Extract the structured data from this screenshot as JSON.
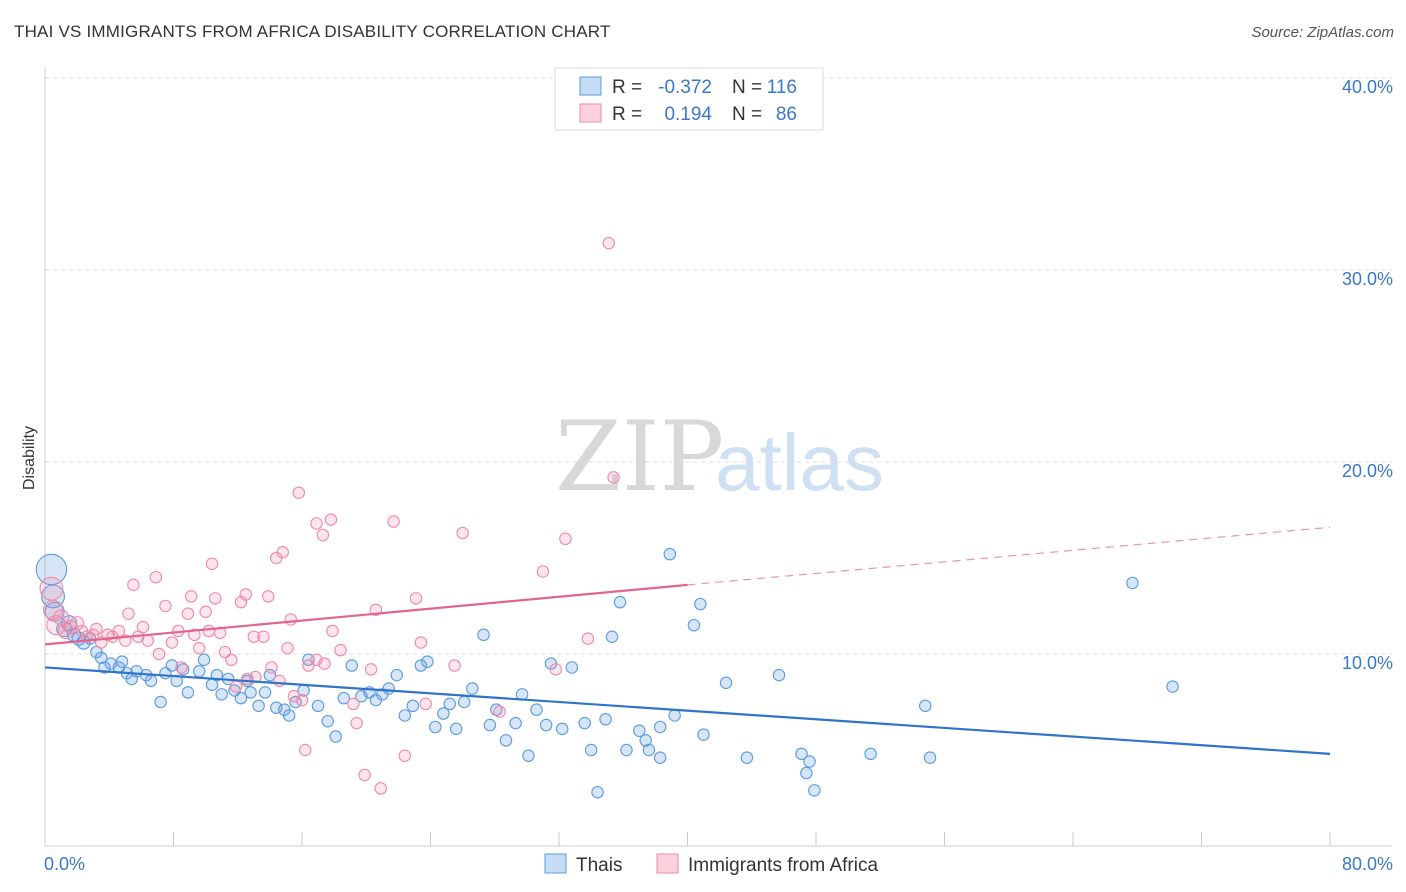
{
  "title": "THAI VS IMMIGRANTS FROM AFRICA DISABILITY CORRELATION CHART",
  "source": "Source: ZipAtlas.com",
  "watermark": {
    "zip": "ZIP",
    "atlas": "atlas"
  },
  "colors": {
    "thais": "#5b9be0",
    "africa": "#f08aa8",
    "thais_line": "#2f74c8",
    "africa_line": "#e06690",
    "axis_text": "#3a78c9"
  },
  "legend": {
    "rows": [
      {
        "r_label": "R =",
        "r_value": "-0.372",
        "n_label": "N =",
        "n_value": "116"
      },
      {
        "r_label": "R =",
        "r_value": "0.194",
        "n_label": "N =",
        "n_value": "86"
      }
    ]
  },
  "chart_data": {
    "type": "scatter",
    "title": "THAI VS IMMIGRANTS FROM AFRICA DISABILITY CORRELATION CHART",
    "xlabel": "",
    "ylabel": "Disability",
    "xlim": [
      0,
      80
    ],
    "ylim": [
      0,
      40
    ],
    "x_tick_labels": [
      "0.0%",
      "80.0%"
    ],
    "y_tick_labels": [
      "10.0%",
      "20.0%",
      "30.0%",
      "40.0%"
    ],
    "y_ticks": [
      10,
      20,
      30,
      40
    ],
    "grid": "horizontal dashed",
    "legend_placement": "top-center",
    "series": [
      {
        "name": "Thais",
        "color": "#5b9be0",
        "R": -0.372,
        "N": 116,
        "trend": {
          "x": [
            0,
            80
          ],
          "y": [
            9.3,
            4.8
          ],
          "dashed_from": null
        },
        "points": [
          [
            0.4,
            14.4,
            1.6
          ],
          [
            0.5,
            13.0,
            1.2
          ],
          [
            0.6,
            12.2,
            1.0
          ],
          [
            1.2,
            11.3,
            0.8
          ],
          [
            1.5,
            11.6,
            0.8
          ],
          [
            1.8,
            11.0,
            0.7
          ],
          [
            2.1,
            10.8,
            0.7
          ],
          [
            2.4,
            10.6,
            0.7
          ],
          [
            2.8,
            10.8,
            0.6
          ],
          [
            3.2,
            10.1,
            0.6
          ],
          [
            3.5,
            9.8,
            0.6
          ],
          [
            3.7,
            9.3,
            0.6
          ],
          [
            4.1,
            9.5,
            0.6
          ],
          [
            4.6,
            9.3,
            0.6
          ],
          [
            4.8,
            9.6,
            0.6
          ],
          [
            5.1,
            9.0,
            0.6
          ],
          [
            5.4,
            8.7,
            0.6
          ],
          [
            5.7,
            9.1,
            0.6
          ],
          [
            6.3,
            8.9,
            0.6
          ],
          [
            6.6,
            8.6,
            0.6
          ],
          [
            7.2,
            7.5,
            0.6
          ],
          [
            7.5,
            9.0,
            0.6
          ],
          [
            7.9,
            9.4,
            0.6
          ],
          [
            8.2,
            8.6,
            0.6
          ],
          [
            8.6,
            9.2,
            0.6
          ],
          [
            8.9,
            8.0,
            0.6
          ],
          [
            9.6,
            9.1,
            0.6
          ],
          [
            9.9,
            9.7,
            0.6
          ],
          [
            10.4,
            8.4,
            0.6
          ],
          [
            10.7,
            8.9,
            0.6
          ],
          [
            11.0,
            7.9,
            0.6
          ],
          [
            11.4,
            8.7,
            0.6
          ],
          [
            11.8,
            8.1,
            0.6
          ],
          [
            12.2,
            7.7,
            0.6
          ],
          [
            12.6,
            8.6,
            0.6
          ],
          [
            12.8,
            8.0,
            0.6
          ],
          [
            13.3,
            7.3,
            0.6
          ],
          [
            13.7,
            8.0,
            0.6
          ],
          [
            14.0,
            8.9,
            0.6
          ],
          [
            14.4,
            7.2,
            0.6
          ],
          [
            14.9,
            7.1,
            0.6
          ],
          [
            15.2,
            6.8,
            0.6
          ],
          [
            15.6,
            7.5,
            0.6
          ],
          [
            16.1,
            8.1,
            0.6
          ],
          [
            16.4,
            9.7,
            0.6
          ],
          [
            17.0,
            7.3,
            0.6
          ],
          [
            17.6,
            6.5,
            0.6
          ],
          [
            18.1,
            5.7,
            0.6
          ],
          [
            18.6,
            7.7,
            0.6
          ],
          [
            19.1,
            9.4,
            0.6
          ],
          [
            19.7,
            7.8,
            0.6
          ],
          [
            20.2,
            8.0,
            0.6
          ],
          [
            20.6,
            7.6,
            0.6
          ],
          [
            21.0,
            7.9,
            0.6
          ],
          [
            21.4,
            8.2,
            0.6
          ],
          [
            21.9,
            8.9,
            0.6
          ],
          [
            22.4,
            6.8,
            0.6
          ],
          [
            22.9,
            7.3,
            0.6
          ],
          [
            23.4,
            9.4,
            0.6
          ],
          [
            23.8,
            9.6,
            0.6
          ],
          [
            24.3,
            6.2,
            0.6
          ],
          [
            24.8,
            6.9,
            0.6
          ],
          [
            25.2,
            7.4,
            0.6
          ],
          [
            25.6,
            6.1,
            0.6
          ],
          [
            26.1,
            7.5,
            0.6
          ],
          [
            26.6,
            8.2,
            0.6
          ],
          [
            27.3,
            11.0,
            0.6
          ],
          [
            27.7,
            6.3,
            0.6
          ],
          [
            28.1,
            7.1,
            0.6
          ],
          [
            28.7,
            5.5,
            0.6
          ],
          [
            29.3,
            6.4,
            0.6
          ],
          [
            29.7,
            7.9,
            0.6
          ],
          [
            30.1,
            4.7,
            0.6
          ],
          [
            30.6,
            7.1,
            0.6
          ],
          [
            31.2,
            6.3,
            0.6
          ],
          [
            31.5,
            9.5,
            0.6
          ],
          [
            32.2,
            6.1,
            0.6
          ],
          [
            32.8,
            9.3,
            0.6
          ],
          [
            33.6,
            6.4,
            0.6
          ],
          [
            34.0,
            5.0,
            0.6
          ],
          [
            34.4,
            2.8,
            0.6
          ],
          [
            34.9,
            6.6,
            0.6
          ],
          [
            35.3,
            10.9,
            0.6
          ],
          [
            35.8,
            12.7,
            0.6
          ],
          [
            36.2,
            5.0,
            0.6
          ],
          [
            37.0,
            6.0,
            0.6
          ],
          [
            37.4,
            5.5,
            0.6
          ],
          [
            37.6,
            5.0,
            0.6
          ],
          [
            38.3,
            6.2,
            0.6
          ],
          [
            38.9,
            15.2,
            0.6
          ],
          [
            38.3,
            4.6,
            0.6
          ],
          [
            39.2,
            6.8,
            0.6
          ],
          [
            40.4,
            11.5,
            0.6
          ],
          [
            40.8,
            12.6,
            0.6
          ],
          [
            41.0,
            5.8,
            0.6
          ],
          [
            42.4,
            8.5,
            0.6
          ],
          [
            43.7,
            4.6,
            0.6
          ],
          [
            45.7,
            8.9,
            0.6
          ],
          [
            47.1,
            4.8,
            0.6
          ],
          [
            47.4,
            3.8,
            0.6
          ],
          [
            47.6,
            4.4,
            0.6
          ],
          [
            47.9,
            2.9,
            0.6
          ],
          [
            51.4,
            4.8,
            0.6
          ],
          [
            54.8,
            7.3,
            0.6
          ],
          [
            55.1,
            4.6,
            0.6
          ],
          [
            67.7,
            13.7,
            0.6
          ],
          [
            70.2,
            8.3,
            0.6
          ]
        ]
      },
      {
        "name": "Immigrants from Africa",
        "color": "#f08aa8",
        "R": 0.194,
        "N": 86,
        "trend": {
          "x": [
            0,
            40,
            80
          ],
          "y": [
            10.5,
            13.6,
            16.6
          ],
          "dashed_from": 40
        },
        "points": [
          [
            0.4,
            13.4,
            1.2
          ],
          [
            0.5,
            12.3,
            1.0
          ],
          [
            0.7,
            11.5,
            1.0
          ],
          [
            1.0,
            11.9,
            0.8
          ],
          [
            1.3,
            11.2,
            0.8
          ],
          [
            1.6,
            11.4,
            0.7
          ],
          [
            2.0,
            11.6,
            0.7
          ],
          [
            2.3,
            11.2,
            0.6
          ],
          [
            2.6,
            10.9,
            0.6
          ],
          [
            3.0,
            11.0,
            0.6
          ],
          [
            3.2,
            11.3,
            0.6
          ],
          [
            3.5,
            10.6,
            0.6
          ],
          [
            3.9,
            11.0,
            0.6
          ],
          [
            4.2,
            10.9,
            0.6
          ],
          [
            4.6,
            11.2,
            0.6
          ],
          [
            5.0,
            10.7,
            0.6
          ],
          [
            5.2,
            12.1,
            0.6
          ],
          [
            5.5,
            13.6,
            0.6
          ],
          [
            5.8,
            10.9,
            0.6
          ],
          [
            6.1,
            11.4,
            0.6
          ],
          [
            6.4,
            10.7,
            0.6
          ],
          [
            6.9,
            14.0,
            0.6
          ],
          [
            7.1,
            10.0,
            0.6
          ],
          [
            7.5,
            12.5,
            0.6
          ],
          [
            7.9,
            10.6,
            0.6
          ],
          [
            8.3,
            11.2,
            0.6
          ],
          [
            8.5,
            9.3,
            0.6
          ],
          [
            8.9,
            12.1,
            0.6
          ],
          [
            9.1,
            13.0,
            0.6
          ],
          [
            9.3,
            11.0,
            0.6
          ],
          [
            9.6,
            10.3,
            0.6
          ],
          [
            10.0,
            12.2,
            0.6
          ],
          [
            10.2,
            11.2,
            0.6
          ],
          [
            10.4,
            14.7,
            0.6
          ],
          [
            10.6,
            12.9,
            0.6
          ],
          [
            10.9,
            11.1,
            0.6
          ],
          [
            11.2,
            10.1,
            0.6
          ],
          [
            11.6,
            9.7,
            0.6
          ],
          [
            11.9,
            8.3,
            0.6
          ],
          [
            12.2,
            12.7,
            0.6
          ],
          [
            12.5,
            13.1,
            0.6
          ],
          [
            12.6,
            8.7,
            0.6
          ],
          [
            13.0,
            10.9,
            0.6
          ],
          [
            13.1,
            8.8,
            0.6
          ],
          [
            13.6,
            10.9,
            0.6
          ],
          [
            13.9,
            13.0,
            0.6
          ],
          [
            14.1,
            9.3,
            0.6
          ],
          [
            14.4,
            15.0,
            0.6
          ],
          [
            14.6,
            8.6,
            0.6
          ],
          [
            14.8,
            15.3,
            0.6
          ],
          [
            15.1,
            10.3,
            0.6
          ],
          [
            15.3,
            11.8,
            0.6
          ],
          [
            15.5,
            7.8,
            0.6
          ],
          [
            15.8,
            18.4,
            0.6
          ],
          [
            16.0,
            7.6,
            0.6
          ],
          [
            16.2,
            5.0,
            0.6
          ],
          [
            16.4,
            9.4,
            0.6
          ],
          [
            16.9,
            9.7,
            0.6
          ],
          [
            17.3,
            16.2,
            0.6
          ],
          [
            17.4,
            9.5,
            0.6
          ],
          [
            17.8,
            17.0,
            0.6
          ],
          [
            17.9,
            11.2,
            0.6
          ],
          [
            18.4,
            10.2,
            0.6
          ],
          [
            19.2,
            7.4,
            0.6
          ],
          [
            19.4,
            6.4,
            0.6
          ],
          [
            19.9,
            3.7,
            0.6
          ],
          [
            20.3,
            9.2,
            0.6
          ],
          [
            20.6,
            12.3,
            0.6
          ],
          [
            20.9,
            3.0,
            0.6
          ],
          [
            21.7,
            16.9,
            0.6
          ],
          [
            22.4,
            4.7,
            0.6
          ],
          [
            23.1,
            12.9,
            0.6
          ],
          [
            23.4,
            10.6,
            0.6
          ],
          [
            23.7,
            7.4,
            0.6
          ],
          [
            25.5,
            9.4,
            0.6
          ],
          [
            26.0,
            16.3,
            0.6
          ],
          [
            28.3,
            7.0,
            0.6
          ],
          [
            31.0,
            14.3,
            0.6
          ],
          [
            31.8,
            9.2,
            0.6
          ],
          [
            32.4,
            16.0,
            0.6
          ],
          [
            33.8,
            10.8,
            0.6
          ],
          [
            35.1,
            31.4,
            0.6
          ],
          [
            35.4,
            19.2,
            0.6
          ],
          [
            16.9,
            16.8,
            0.6
          ],
          [
            6.7,
            6.5,
            0.0
          ]
        ]
      }
    ]
  },
  "axis": {
    "ylabel": "Disability"
  },
  "bottom_legend": [
    {
      "label": "Thais"
    },
    {
      "label": "Immigrants from Africa"
    }
  ]
}
